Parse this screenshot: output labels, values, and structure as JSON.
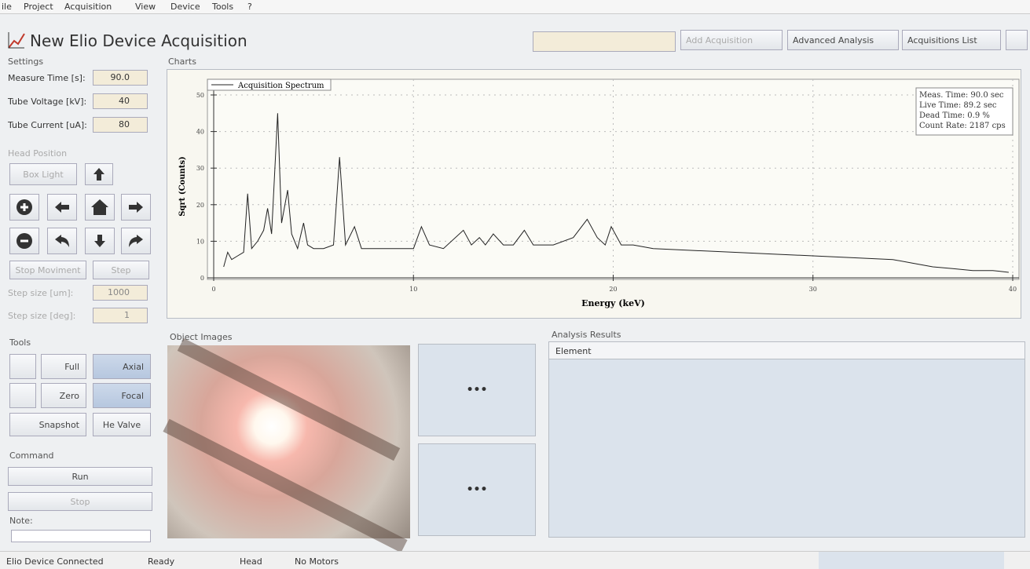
{
  "menu": [
    "ile",
    "Project",
    "Acquisition",
    "View",
    "Device",
    "Tools",
    "?"
  ],
  "header": {
    "title": "New Elio Device Acquisition",
    "buttons": [
      "Add Acquisition",
      "Advanced Analysis",
      "Acquisitions List"
    ]
  },
  "settings": {
    "title": "Settings",
    "fields": [
      {
        "label": "Measure Time [s]:",
        "value": "90.0"
      },
      {
        "label": "Tube Voltage [kV]:",
        "value": "40"
      },
      {
        "label": "Tube Current [uA]:",
        "value": "80"
      }
    ]
  },
  "head_position": {
    "title": "Head Position",
    "box_light": "Box Light",
    "stop": "Stop Moviment",
    "step": "Step",
    "fields": [
      {
        "label": "Step size [um]:",
        "value": "1000"
      },
      {
        "label": "Step size [deg]:",
        "value": "1"
      }
    ]
  },
  "tools": {
    "title": "Tools",
    "buttons": [
      "Full",
      "Axial",
      "Zero",
      "Focal",
      "Snapshot",
      "He Valve"
    ]
  },
  "command": {
    "title": "Command",
    "run": "Run",
    "stop": "Stop",
    "note": "Note:"
  },
  "charts_title": "Charts",
  "chart_data": {
    "type": "line",
    "xlabel": "Energy (keV)",
    "ylabel": "Sqrt (Counts)",
    "annotations": [
      "Meas. Time: 90.0 sec",
      "Live Time: 89.2 sec",
      "Dead Time: 0.9 %",
      "Count Rate: 2187 cps"
    ],
    "x": [
      0.5,
      0.7,
      0.9,
      1.2,
      1.5,
      1.7,
      1.9,
      2.2,
      2.5,
      2.7,
      2.9,
      3.2,
      3.4,
      3.7,
      3.9,
      4.2,
      4.5,
      4.7,
      5.0,
      5.5,
      6.0,
      6.3,
      6.6,
      7.05,
      7.4,
      8,
      9,
      10,
      10.4,
      10.8,
      11.5,
      12.5,
      12.9,
      13.3,
      13.6,
      14,
      14.5,
      15,
      15.55,
      16,
      17,
      18,
      18.7,
      19.2,
      19.6,
      19.9,
      20.4,
      21,
      22,
      24,
      26,
      28,
      30,
      32,
      34,
      35,
      36,
      37,
      38,
      39,
      39.8
    ],
    "series": [
      {
        "name": "Acquisition Spectrum",
        "color": "#222222",
        "values": [
          3,
          7,
          5,
          6,
          7,
          23,
          8,
          10,
          13,
          19,
          12,
          45,
          15,
          24,
          12,
          8,
          15,
          9,
          8,
          8,
          9,
          33,
          9,
          14,
          8,
          8,
          8,
          8,
          14,
          9,
          8,
          13,
          9,
          11,
          9,
          12,
          9,
          9,
          13,
          9,
          9,
          11,
          16,
          11,
          9,
          14,
          9,
          9,
          8,
          7.5,
          7,
          6.5,
          6,
          5.5,
          5,
          4,
          3,
          2.5,
          2,
          2,
          1.5
        ]
      }
    ],
    "xlim": [
      0,
      40
    ],
    "ylim": [
      0,
      50
    ],
    "xticks": [
      0,
      10,
      20,
      30,
      40
    ],
    "yticks": [
      0,
      10,
      20,
      30,
      40,
      50
    ],
    "grid": true
  },
  "object_images": {
    "title": "Object Images",
    "buttons": [
      "•••",
      "•••"
    ]
  },
  "analysis_results": {
    "title": "Analysis Results",
    "column": "Element"
  },
  "status_bar": [
    "Elio Device Connected",
    "Ready",
    "Head",
    "No Motors"
  ]
}
